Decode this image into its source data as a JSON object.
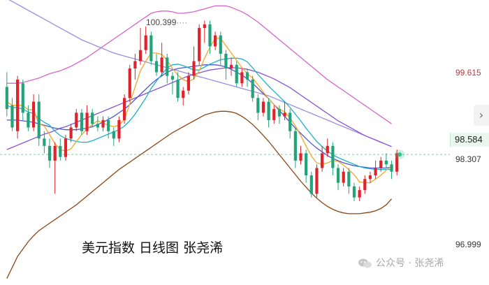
{
  "chart_data": {
    "type": "candlestick",
    "title": "美元指数 日线图 张尧浠",
    "y_ticks": [
      "99.615",
      "98.307",
      "96.999"
    ],
    "current_price": "98.584",
    "max_annotation": "100.399",
    "ylim": [
      96.85,
      100.68
    ],
    "candles": [
      [
        99.5,
        99.2,
        99.7,
        99.1
      ],
      [
        99.25,
        98.95,
        99.35,
        98.9
      ],
      [
        98.9,
        99.6,
        99.65,
        98.8
      ],
      [
        99.55,
        99.15,
        99.6,
        99.05
      ],
      [
        99.15,
        98.95,
        99.25,
        98.9
      ],
      [
        98.95,
        99.3,
        99.4,
        98.9
      ],
      [
        99.3,
        98.8,
        99.4,
        98.7
      ],
      [
        98.8,
        98.7,
        98.9,
        98.6
      ],
      [
        98.7,
        98.5,
        98.8,
        98.4
      ],
      [
        98.5,
        98.7,
        98.75,
        98.05
      ],
      [
        98.7,
        98.55,
        98.8,
        98.5
      ],
      [
        98.55,
        98.8,
        98.85,
        98.5
      ],
      [
        98.8,
        98.95,
        99.0,
        98.75
      ],
      [
        98.95,
        99.15,
        99.2,
        98.9
      ],
      [
        99.15,
        98.9,
        99.2,
        98.85
      ],
      [
        98.9,
        99.15,
        99.25,
        98.85
      ],
      [
        99.15,
        99.0,
        99.2,
        98.95
      ],
      [
        99.0,
        98.95,
        99.1,
        98.9
      ],
      [
        98.95,
        99.05,
        99.1,
        98.9
      ],
      [
        99.05,
        98.9,
        99.1,
        98.8
      ],
      [
        98.9,
        98.8,
        98.95,
        98.7
      ],
      [
        98.8,
        99.05,
        99.1,
        98.75
      ],
      [
        99.05,
        99.35,
        99.4,
        99.0
      ],
      [
        99.35,
        99.75,
        99.8,
        99.3
      ],
      [
        99.75,
        99.85,
        99.95,
        99.6
      ],
      [
        99.85,
        100.0,
        100.3,
        99.8
      ],
      [
        100.0,
        100.2,
        100.32,
        99.95
      ],
      [
        100.2,
        99.85,
        100.25,
        99.8
      ],
      [
        99.85,
        99.7,
        99.95,
        99.65
      ],
      [
        99.7,
        99.9,
        100.1,
        99.65
      ],
      [
        99.9,
        99.65,
        99.95,
        99.55
      ],
      [
        99.65,
        99.6,
        99.7,
        99.4
      ],
      [
        99.6,
        99.35,
        99.7,
        99.3
      ],
      [
        99.35,
        99.45,
        99.5,
        99.25
      ],
      [
        99.45,
        99.65,
        99.7,
        99.4
      ],
      [
        99.65,
        99.85,
        100.05,
        99.6
      ],
      [
        99.85,
        100.3,
        100.35,
        99.8
      ],
      [
        100.3,
        100.35,
        100.4,
        100.1
      ],
      [
        100.35,
        100.05,
        100.4,
        99.95
      ],
      [
        100.05,
        100.2,
        100.25,
        100.0
      ],
      [
        100.2,
        99.95,
        100.25,
        99.8
      ],
      [
        99.95,
        99.75,
        100.0,
        99.6
      ],
      [
        99.75,
        99.8,
        99.9,
        99.65
      ],
      [
        99.8,
        99.55,
        99.85,
        99.5
      ],
      [
        99.55,
        99.7,
        99.75,
        99.5
      ],
      [
        99.7,
        99.6,
        99.75,
        99.5
      ],
      [
        99.6,
        99.35,
        99.65,
        99.3
      ],
      [
        99.35,
        99.15,
        99.4,
        99.05
      ],
      [
        99.15,
        99.3,
        99.35,
        99.1
      ],
      [
        99.3,
        99.05,
        99.35,
        98.95
      ],
      [
        99.05,
        99.2,
        99.25,
        99.0
      ],
      [
        99.2,
        99.1,
        99.25,
        99.0
      ],
      [
        99.1,
        99.15,
        99.3,
        99.05
      ],
      [
        99.15,
        98.9,
        99.2,
        98.8
      ],
      [
        98.9,
        98.5,
        98.95,
        98.4
      ],
      [
        98.5,
        98.6,
        98.7,
        98.45
      ],
      [
        98.6,
        98.3,
        98.65,
        98.2
      ],
      [
        98.3,
        98.05,
        98.35,
        98.0
      ],
      [
        98.05,
        98.4,
        98.45,
        98.0
      ],
      [
        98.4,
        98.6,
        98.7,
        98.35
      ],
      [
        98.6,
        98.7,
        98.8,
        98.55
      ],
      [
        98.7,
        98.4,
        98.75,
        98.3
      ],
      [
        98.4,
        98.2,
        98.45,
        98.1
      ],
      [
        98.2,
        98.35,
        98.4,
        98.15
      ],
      [
        98.35,
        98.15,
        98.4,
        98.05
      ],
      [
        98.15,
        98.0,
        98.2,
        97.95
      ],
      [
        98.0,
        98.1,
        98.15,
        97.95
      ],
      [
        98.1,
        98.25,
        98.3,
        98.05
      ],
      [
        98.25,
        98.3,
        98.35,
        98.2
      ],
      [
        98.3,
        98.4,
        98.5,
        98.25
      ],
      [
        98.4,
        98.5,
        98.55,
        98.35
      ],
      [
        98.5,
        98.45,
        98.6,
        98.4
      ],
      [
        98.45,
        98.35,
        98.5,
        98.25
      ],
      [
        98.35,
        98.6,
        98.65,
        98.3
      ]
    ],
    "ma5": [
      99.3,
      99.25,
      99.25,
      99.25,
      99.19,
      99.19,
      99.0,
      98.97,
      98.85,
      98.73,
      98.65,
      98.63,
      98.66,
      98.76,
      98.85,
      98.93,
      98.99,
      99.04,
      99.01,
      98.98,
      98.96,
      98.98,
      99.06,
      99.27,
      99.5,
      99.72,
      99.85,
      99.96,
      99.96,
      99.94,
      99.86,
      99.75,
      99.66,
      99.6,
      99.57,
      99.61,
      99.72,
      99.89,
      100.04,
      100.16,
      100.16,
      100.06,
      99.96,
      99.86,
      99.76,
      99.68,
      99.62,
      99.53,
      99.43,
      99.34,
      99.26,
      99.2,
      99.16,
      99.08,
      98.97,
      98.84,
      98.7,
      98.56,
      98.47,
      98.45,
      98.47,
      98.5,
      98.49,
      98.44,
      98.38,
      98.31,
      98.21,
      98.2,
      98.2,
      98.25,
      98.3,
      98.37,
      98.42
    ],
    "ma10": [
      99.25,
      99.22,
      99.22,
      99.2,
      99.16,
      99.14,
      99.07,
      99.02,
      98.98,
      98.9,
      98.84,
      98.8,
      98.78,
      98.76,
      98.75,
      98.75,
      98.77,
      98.8,
      98.83,
      98.86,
      98.89,
      98.92,
      98.97,
      99.04,
      99.13,
      99.24,
      99.35,
      99.48,
      99.58,
      99.67,
      99.76,
      99.8,
      99.81,
      99.79,
      99.76,
      99.73,
      99.73,
      99.77,
      99.81,
      99.84,
      99.87,
      99.88,
      99.89,
      99.89,
      99.88,
      99.84,
      99.76,
      99.67,
      99.59,
      99.51,
      99.44,
      99.37,
      99.3,
      99.22,
      99.13,
      99.04,
      98.94,
      98.85,
      98.76,
      98.69,
      98.63,
      98.58,
      98.54,
      98.51,
      98.48,
      98.45,
      98.42,
      98.4,
      98.39,
      98.38,
      98.38,
      98.38,
      98.38
    ],
    "ma20": [
      99.05,
      99.05,
      99.05,
      99.04,
      99.03,
      99.02,
      99.0,
      98.98,
      98.96,
      98.94,
      98.93,
      98.92,
      98.92,
      98.92,
      98.93,
      98.94,
      98.96,
      98.99,
      99.02,
      99.06,
      99.1,
      99.15,
      99.2,
      99.26,
      99.33,
      99.4,
      99.47,
      99.54,
      99.6,
      99.65,
      99.7,
      99.73,
      99.75,
      99.76,
      99.77,
      99.78,
      99.79,
      99.8,
      99.8,
      99.8,
      99.79,
      99.77,
      99.74,
      99.7,
      99.66,
      99.61,
      99.55,
      99.48,
      99.41,
      99.34,
      99.26,
      99.18,
      99.1,
      99.02,
      98.94,
      98.87,
      98.8,
      98.73,
      98.67,
      98.62,
      98.57,
      98.53,
      98.5,
      98.47,
      98.45,
      98.43,
      98.42,
      98.41,
      98.4,
      98.4,
      98.4,
      98.4,
      98.41
    ],
    "ma_long": [
      98.65,
      98.68,
      98.71,
      98.74,
      98.77,
      98.8,
      98.83,
      98.86,
      98.88,
      98.91,
      98.94,
      98.96,
      98.99,
      99.02,
      99.05,
      99.08,
      99.11,
      99.14,
      99.17,
      99.2,
      99.23,
      99.26,
      99.29,
      99.32,
      99.35,
      99.38,
      99.41,
      99.44,
      99.47,
      99.5,
      99.53,
      99.56,
      99.59,
      99.62,
      99.65,
      99.67,
      99.69,
      99.71,
      99.73,
      99.74,
      99.75,
      99.76,
      99.76,
      99.76,
      99.75,
      99.74,
      99.72,
      99.7,
      99.67,
      99.64,
      99.61,
      99.57,
      99.53,
      99.49,
      99.44,
      99.39,
      99.34,
      99.29,
      99.24,
      99.19,
      99.14,
      99.09,
      99.04,
      99.0,
      98.96,
      98.92,
      98.88,
      98.84,
      98.81,
      98.78,
      98.75,
      98.72,
      98.69
    ],
    "ma_xlong": [
      100.7,
      100.66,
      100.62,
      100.58,
      100.54,
      100.5,
      100.46,
      100.42,
      100.38,
      100.34,
      100.3,
      100.26,
      100.22,
      100.18,
      100.14,
      100.11,
      100.08,
      100.05,
      100.02,
      99.99,
      99.96,
      99.94,
      99.92,
      99.9,
      99.88,
      99.86,
      99.84,
      99.82,
      99.8,
      99.78,
      99.76,
      99.74,
      99.72,
      99.7,
      99.68,
      99.66,
      99.64,
      99.62,
      99.6,
      99.58,
      99.56,
      99.54,
      99.52,
      99.5,
      99.48,
      99.46,
      99.44,
      99.42,
      99.4,
      99.38,
      99.35,
      99.32,
      99.29,
      99.26,
      99.23,
      99.2,
      99.17,
      99.14,
      99.11,
      99.08,
      99.05,
      99.02,
      98.99,
      98.96,
      98.93,
      98.9,
      98.87,
      98.84,
      98.81,
      98.78,
      98.75,
      98.72,
      98.69
    ],
    "boll_upper": [
      99.55,
      99.55,
      99.55,
      99.56,
      99.58,
      99.6,
      99.62,
      99.65,
      99.68,
      99.7,
      99.72,
      99.75,
      99.78,
      99.82,
      99.86,
      99.9,
      99.95,
      100.0,
      100.05,
      100.1,
      100.15,
      100.2,
      100.25,
      100.3,
      100.35,
      100.4,
      100.45,
      100.5,
      100.52,
      100.53,
      100.53,
      100.52,
      100.5,
      100.5,
      100.51,
      100.52,
      100.54,
      100.56,
      100.58,
      100.6,
      100.6,
      100.6,
      100.58,
      100.55,
      100.52,
      100.48,
      100.43,
      100.38,
      100.32,
      100.26,
      100.2,
      100.14,
      100.08,
      100.02,
      99.96,
      99.9,
      99.84,
      99.78,
      99.72,
      99.66,
      99.6,
      99.55,
      99.5,
      99.45,
      99.4,
      99.35,
      99.3,
      99.25,
      99.2,
      99.15,
      99.1,
      99.05,
      99.0
    ],
    "boll_lower": [
      96.9,
      97.05,
      97.2,
      97.3,
      97.4,
      97.48,
      97.55,
      97.6,
      97.65,
      97.7,
      97.75,
      97.8,
      97.85,
      97.9,
      97.96,
      98.02,
      98.08,
      98.14,
      98.2,
      98.26,
      98.32,
      98.38,
      98.43,
      98.48,
      98.53,
      98.58,
      98.63,
      98.68,
      98.73,
      98.78,
      98.83,
      98.88,
      98.92,
      98.96,
      99.0,
      99.04,
      99.08,
      99.12,
      99.14,
      99.16,
      99.17,
      99.17,
      99.16,
      99.14,
      99.1,
      99.05,
      98.99,
      98.92,
      98.84,
      98.76,
      98.67,
      98.58,
      98.49,
      98.4,
      98.31,
      98.22,
      98.14,
      98.06,
      97.99,
      97.93,
      97.88,
      97.84,
      97.81,
      97.79,
      97.78,
      97.78,
      97.78,
      97.79,
      97.8,
      97.82,
      97.85,
      97.9,
      97.98
    ]
  },
  "colors": {
    "up": "#e0232a",
    "down": "#22a37a",
    "ma5": "#f5a623",
    "ma10": "#1bb1c4",
    "ma20": "#4a56d8",
    "ma_long": "#8a52d6",
    "ma_xlong": "#9b8de0",
    "boll_upper": "#d664c8",
    "boll_lower": "#8b4513",
    "axis_text_upper": "#c9363e",
    "axis_text": "#333333",
    "current_line": "#3bbf8f"
  },
  "caption": "美元指数 日线图 张尧浠",
  "watermark": "公众号 · 张尧浠",
  "nav_icon": "chevron-right-icon"
}
